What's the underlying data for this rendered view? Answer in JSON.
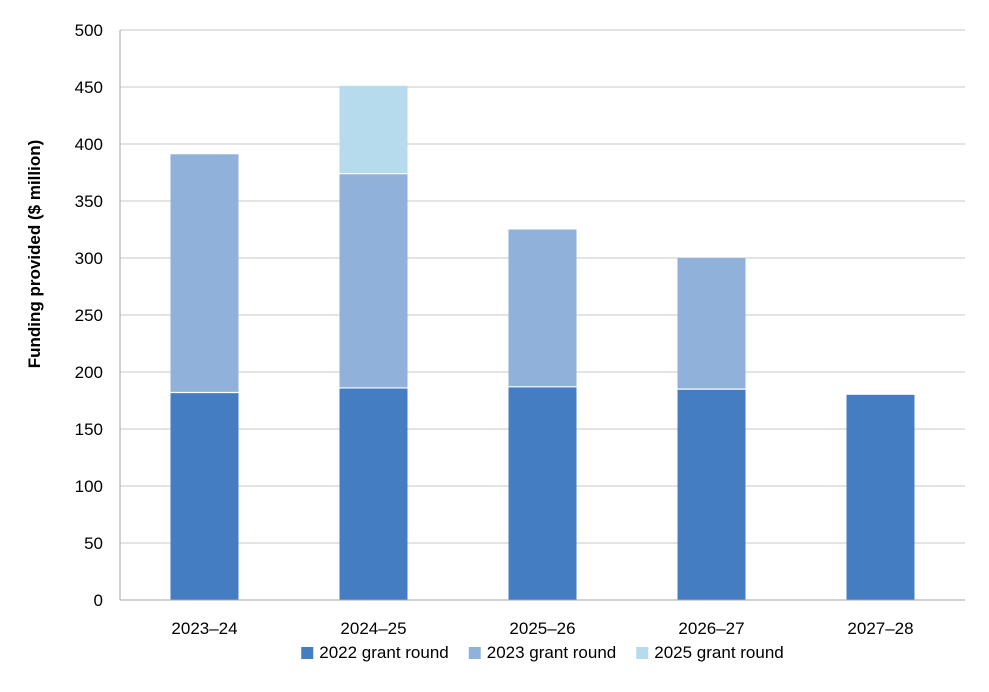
{
  "chart_data": {
    "type": "bar",
    "stacked": true,
    "categories": [
      "2023–24",
      "2024–25",
      "2025–26",
      "2026–27",
      "2027–28"
    ],
    "series": [
      {
        "name": "2022 grant round",
        "color": "#447dc1",
        "values": [
          182,
          186,
          187,
          185,
          180
        ]
      },
      {
        "name": "2023 grant round",
        "color": "#90b2da",
        "values": [
          209,
          188,
          138,
          115,
          0
        ]
      },
      {
        "name": "2025 grant round",
        "color": "#b5dbed",
        "values": [
          0,
          77,
          0,
          0,
          0
        ]
      }
    ],
    "title": "",
    "xlabel": "",
    "ylabel": "Funding provided ($ million)",
    "ylim": [
      0,
      500
    ],
    "yticks": [
      0,
      50,
      100,
      150,
      200,
      250,
      300,
      350,
      400,
      450,
      500
    ],
    "grid": true,
    "legend": "bottom"
  }
}
